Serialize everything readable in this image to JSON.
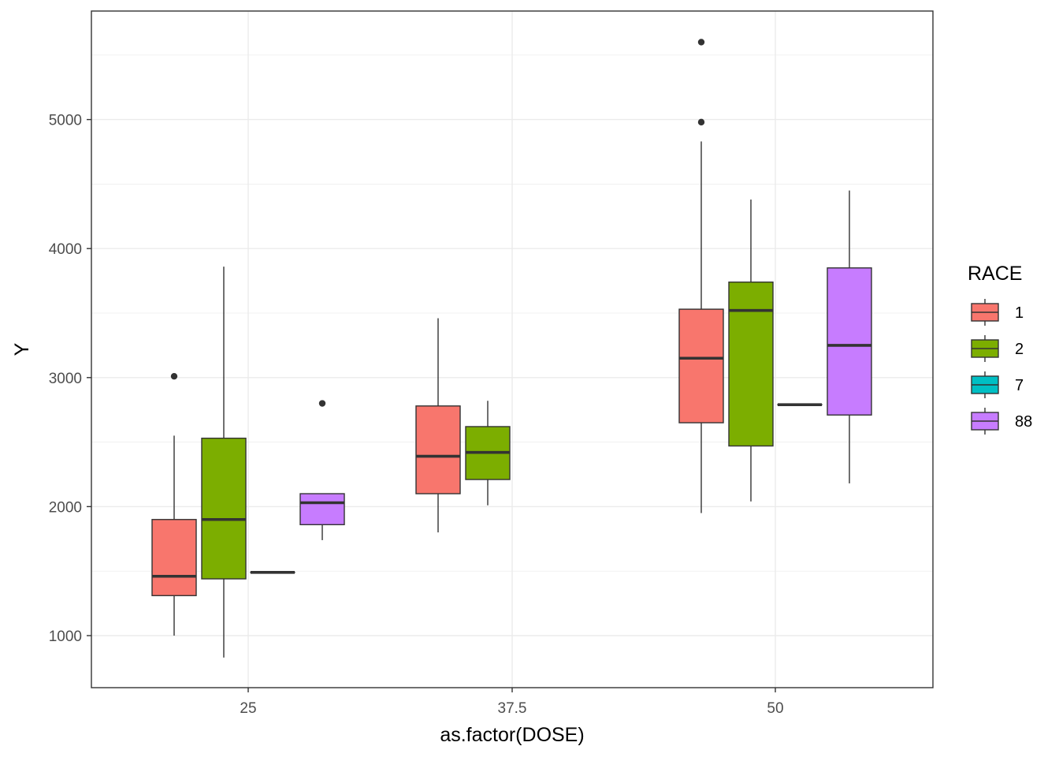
{
  "chart_data": {
    "type": "boxplot",
    "title": "",
    "xlabel": "as.factor(DOSE)",
    "ylabel": "Y",
    "categories": [
      "25",
      "37.5",
      "50"
    ],
    "y_ticks": [
      1000,
      2000,
      3000,
      4000,
      5000
    ],
    "ylim": [
      600,
      5850
    ],
    "grid": true,
    "legend": {
      "title": "RACE",
      "position": "right",
      "entries": [
        {
          "label": "1",
          "color": "#F8766D"
        },
        {
          "label": "2",
          "color": "#7CAE00"
        },
        {
          "label": "7",
          "color": "#00BFC4"
        },
        {
          "label": "88",
          "color": "#C77CFF"
        }
      ]
    },
    "boxes": [
      {
        "dose": "25",
        "race": "1",
        "lower_whisker": 1000,
        "q1": 1310,
        "median": 1460,
        "q3": 1900,
        "upper_whisker": 2550,
        "outliers": [
          3010
        ]
      },
      {
        "dose": "25",
        "race": "2",
        "lower_whisker": 830,
        "q1": 1440,
        "median": 1900,
        "q3": 2530,
        "upper_whisker": 3860,
        "outliers": []
      },
      {
        "dose": "25",
        "race": "7",
        "lower_whisker": 1490,
        "q1": 1490,
        "median": 1490,
        "q3": 1490,
        "upper_whisker": 1490,
        "outliers": []
      },
      {
        "dose": "25",
        "race": "88",
        "lower_whisker": 1740,
        "q1": 1860,
        "median": 2030,
        "q3": 2100,
        "upper_whisker": 2100,
        "outliers": [
          2800
        ]
      },
      {
        "dose": "37.5",
        "race": "1",
        "lower_whisker": 1800,
        "q1": 2100,
        "median": 2390,
        "q3": 2780,
        "upper_whisker": 3460,
        "outliers": []
      },
      {
        "dose": "37.5",
        "race": "2",
        "lower_whisker": 2010,
        "q1": 2210,
        "median": 2420,
        "q3": 2620,
        "upper_whisker": 2820,
        "outliers": []
      },
      {
        "dose": "50",
        "race": "1",
        "lower_whisker": 1950,
        "q1": 2650,
        "median": 3150,
        "q3": 3530,
        "upper_whisker": 4830,
        "outliers": [
          4980,
          5600
        ]
      },
      {
        "dose": "50",
        "race": "2",
        "lower_whisker": 2040,
        "q1": 2470,
        "median": 3520,
        "q3": 3740,
        "upper_whisker": 4380,
        "outliers": []
      },
      {
        "dose": "50",
        "race": "7",
        "lower_whisker": 2790,
        "q1": 2790,
        "median": 2790,
        "q3": 2790,
        "upper_whisker": 2790,
        "outliers": []
      },
      {
        "dose": "50",
        "race": "88",
        "lower_whisker": 2180,
        "q1": 2710,
        "median": 3250,
        "q3": 3850,
        "upper_whisker": 4450,
        "outliers": []
      }
    ]
  }
}
